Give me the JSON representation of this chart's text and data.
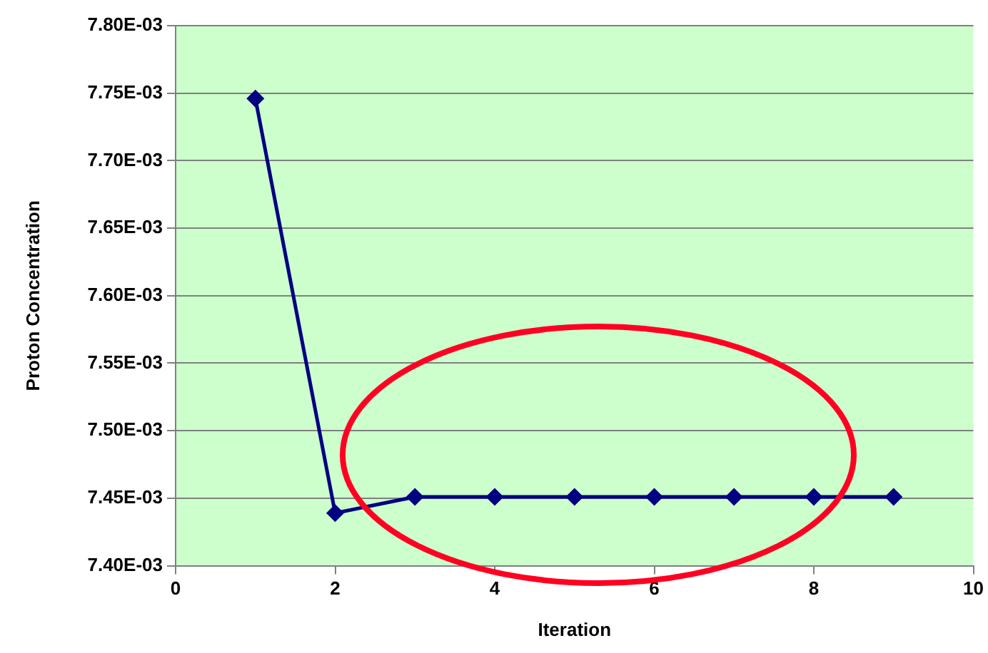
{
  "chart_data": {
    "type": "line",
    "xlabel": "Iteration",
    "ylabel": "Proton Concentration",
    "x": [
      1,
      2,
      3,
      4,
      5,
      6,
      7,
      8,
      9
    ],
    "series": [
      {
        "color": "#000080",
        "values": [
          0.007746,
          0.007439,
          0.007451,
          0.007451,
          0.007451,
          0.007451,
          0.007451,
          0.007451,
          0.007451
        ]
      }
    ],
    "xlim": [
      0,
      10
    ],
    "xticks": [
      0,
      2,
      4,
      6,
      8,
      10
    ],
    "ylim": [
      0.0074,
      0.0078
    ],
    "yticks": [
      {
        "value": 0.0074,
        "label": "7.40E-03"
      },
      {
        "value": 0.00745,
        "label": "7.45E-03"
      },
      {
        "value": 0.0075,
        "label": "7.50E-03"
      },
      {
        "value": 0.00755,
        "label": "7.55E-03"
      },
      {
        "value": 0.0076,
        "label": "7.60E-03"
      },
      {
        "value": 0.00765,
        "label": "7.65E-03"
      },
      {
        "value": 0.0077,
        "label": "7.70E-03"
      },
      {
        "value": 0.00775,
        "label": "7.75E-03"
      },
      {
        "value": 0.0078,
        "label": "7.80E-03"
      }
    ],
    "grid": "y",
    "legend": false,
    "marker": "diamond",
    "line_style": "solid"
  }
}
